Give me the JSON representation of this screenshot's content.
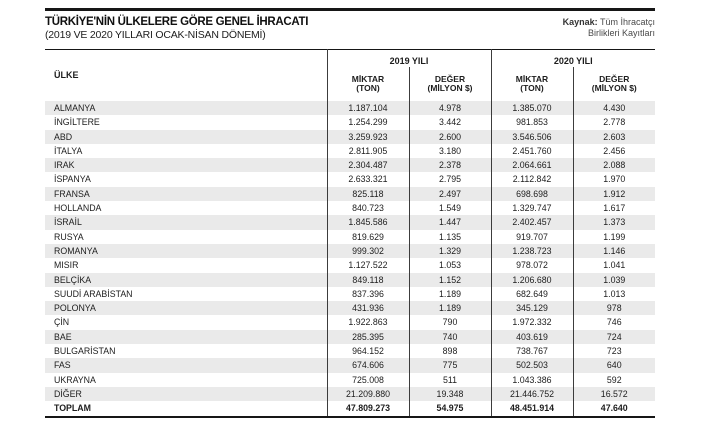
{
  "header": {
    "title": "TÜRKİYE'NİN ÜLKELERE GÖRE GENEL İHRACATI",
    "subtitle": "(2019 VE 2020 YILLARI OCAK-NİSAN DÖNEMİ)",
    "source_label": "Kaynak:",
    "source_line1": " Tüm İhracatçı",
    "source_line2": "Birlikleri Kayıtları"
  },
  "table": {
    "country_header": "ÜLKE",
    "year_2019": "2019 YILI",
    "year_2020": "2020 YILI",
    "sub": [
      {
        "l1": "MİKTAR",
        "l2": "(TON)"
      },
      {
        "l1": "DEĞER",
        "l2": "(MİLYON $)"
      }
    ],
    "rows": [
      {
        "country": "ALMANYA",
        "values": [
          "1.187.104",
          "4.978",
          "1.385.070",
          "4.430"
        ]
      },
      {
        "country": "İNGİLTERE",
        "values": [
          "1.254.299",
          "3.442",
          "981.853",
          "2.778"
        ]
      },
      {
        "country": "ABD",
        "values": [
          "3.259.923",
          "2.600",
          "3.546.506",
          "2.603"
        ]
      },
      {
        "country": "İTALYA",
        "values": [
          "2.811.905",
          "3.180",
          "2.451.760",
          "2.456"
        ]
      },
      {
        "country": "IRAK",
        "values": [
          "2.304.487",
          "2.378",
          "2.064.661",
          "2.088"
        ]
      },
      {
        "country": "İSPANYA",
        "values": [
          "2.633.321",
          "2.795",
          "2.112.842",
          "1.970"
        ]
      },
      {
        "country": "FRANSA",
        "values": [
          "825.118",
          "2.497",
          "698.698",
          "1.912"
        ]
      },
      {
        "country": "HOLLANDA",
        "values": [
          "840.723",
          "1.549",
          "1.329.747",
          "1.617"
        ]
      },
      {
        "country": "İSRAİL",
        "values": [
          "1.845.586",
          "1.447",
          "2.402.457",
          "1.373"
        ]
      },
      {
        "country": "RUSYA",
        "values": [
          "819.629",
          "1.135",
          "919.707",
          "1.199"
        ]
      },
      {
        "country": "ROMANYA",
        "values": [
          "999.302",
          "1.329",
          "1.238.723",
          "1.146"
        ]
      },
      {
        "country": "MISIR",
        "values": [
          "1.127.522",
          "1.053",
          "978.072",
          "1.041"
        ]
      },
      {
        "country": "BELÇİKA",
        "values": [
          "849.118",
          "1.152",
          "1.206.680",
          "1.039"
        ]
      },
      {
        "country": "SUUDİ ARABİSTAN",
        "values": [
          "837.396",
          "1.189",
          "682.649",
          "1.013"
        ]
      },
      {
        "country": "POLONYA",
        "values": [
          "431.936",
          "1.189",
          "345.129",
          "978"
        ]
      },
      {
        "country": "ÇİN",
        "values": [
          "1.922.863",
          "790",
          "1.972.332",
          "746"
        ]
      },
      {
        "country": "BAE",
        "values": [
          "285.395",
          "740",
          "403.619",
          "724"
        ]
      },
      {
        "country": "BULGARİSTAN",
        "values": [
          "964.152",
          "898",
          "738.767",
          "723"
        ]
      },
      {
        "country": "FAS",
        "values": [
          "674.606",
          "775",
          "502.503",
          "640"
        ]
      },
      {
        "country": "UKRAYNA",
        "values": [
          "725.008",
          "511",
          "1.043.386",
          "592"
        ]
      },
      {
        "country": "DİĞER",
        "values": [
          "21.209.880",
          "19.348",
          "21.446.752",
          "16.572"
        ]
      },
      {
        "country": "TOPLAM",
        "values": [
          "47.809.273",
          "54.975",
          "48.451.914",
          "47.640"
        ],
        "total": true
      }
    ]
  },
  "colors": {
    "rule_line": "#161616",
    "divider_line": "#3c3c3c",
    "row_stripe": "#eaeaea",
    "text": "#1d1d1d"
  },
  "chart_data": {
    "type": "table",
    "title": "TÜRKİYE'NİN ÜLKELERE GÖRE GENEL İHRACATI (2019 VE 2020 YILLARI OCAK-NİSAN DÖNEMİ)",
    "source": "Kaynak: Tüm İhracatçı Birlikleri Kayıtları",
    "columns": [
      "ÜLKE",
      "2019 MİKTAR (TON)",
      "2019 DEĞER (MİLYON $)",
      "2020 MİKTAR (TON)",
      "2020 DEĞER (MİLYON $)"
    ],
    "rows": [
      [
        "ALMANYA",
        1187104,
        4978,
        1385070,
        4430
      ],
      [
        "İNGİLTERE",
        1254299,
        3442,
        981853,
        2778
      ],
      [
        "ABD",
        3259923,
        2600,
        3546506,
        2603
      ],
      [
        "İTALYA",
        2811905,
        3180,
        2451760,
        2456
      ],
      [
        "IRAK",
        2304487,
        2378,
        2064661,
        2088
      ],
      [
        "İSPANYA",
        2633321,
        2795,
        2112842,
        1970
      ],
      [
        "FRANSA",
        825118,
        2497,
        698698,
        1912
      ],
      [
        "HOLLANDA",
        840723,
        1549,
        1329747,
        1617
      ],
      [
        "İSRAİL",
        1845586,
        1447,
        2402457,
        1373
      ],
      [
        "RUSYA",
        819629,
        1135,
        919707,
        1199
      ],
      [
        "ROMANYA",
        999302,
        1329,
        1238723,
        1146
      ],
      [
        "MISIR",
        1127522,
        1053,
        978072,
        1041
      ],
      [
        "BELÇİKA",
        849118,
        1152,
        1206680,
        1039
      ],
      [
        "SUUDİ ARABİSTAN",
        837396,
        1189,
        682649,
        1013
      ],
      [
        "POLONYA",
        431936,
        1189,
        345129,
        978
      ],
      [
        "ÇİN",
        1922863,
        790,
        1972332,
        746
      ],
      [
        "BAE",
        285395,
        740,
        403619,
        724
      ],
      [
        "BULGARİSTAN",
        964152,
        898,
        738767,
        723
      ],
      [
        "FAS",
        674606,
        775,
        502503,
        640
      ],
      [
        "UKRAYNA",
        725008,
        511,
        1043386,
        592
      ],
      [
        "DİĞER",
        21209880,
        19348,
        21446752,
        16572
      ]
    ],
    "total_row": [
      "TOPLAM",
      47809273,
      54975,
      48451914,
      47640
    ]
  }
}
